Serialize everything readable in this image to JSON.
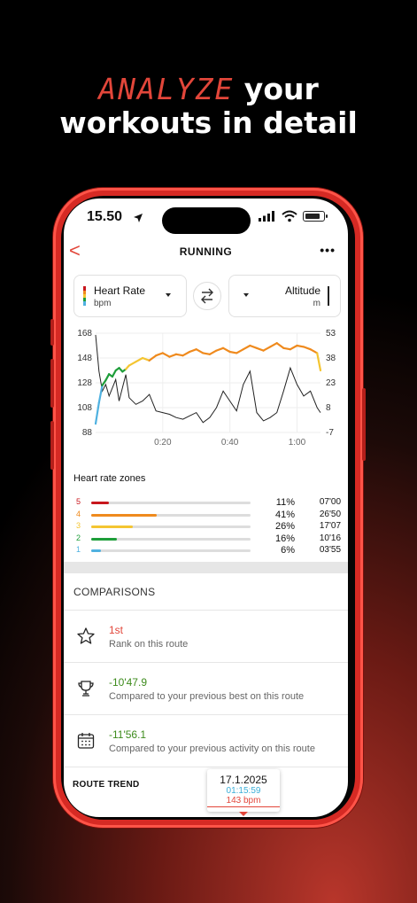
{
  "headline": {
    "accent": "ANALYZE",
    "rest1": " your",
    "line2": "workouts in detail"
  },
  "status_bar": {
    "time": "15.50"
  },
  "nav": {
    "back": "<",
    "title": "RUNNING",
    "more": "•••"
  },
  "selector_left": {
    "label": "Heart Rate",
    "unit": "bpm"
  },
  "selector_right": {
    "label": "Altitude",
    "unit": "m"
  },
  "chart_data": {
    "type": "line",
    "x_tick_labels": [
      "0:20",
      "0:40",
      "1:00"
    ],
    "y_left_ticks": [
      "168",
      "148",
      "128",
      "108",
      "88"
    ],
    "y_right_ticks": [
      "53",
      "38",
      "23",
      "8",
      "-7"
    ],
    "y_left_lim": [
      88,
      168
    ],
    "y_right_lim": [
      -7,
      53
    ],
    "x_minutes_lim": [
      0,
      67
    ],
    "series": [
      {
        "x": [
          0,
          1,
          2,
          3,
          4,
          5,
          6,
          7,
          8,
          9,
          10,
          12,
          14,
          16,
          18,
          20,
          22,
          24,
          26,
          28,
          30,
          32,
          34,
          36,
          38,
          40,
          42,
          44,
          46,
          48,
          50,
          52,
          54,
          56,
          58,
          60,
          62,
          64,
          66,
          67
        ],
        "values": [
          95,
          112,
          126,
          130,
          135,
          133,
          138,
          140,
          137,
          139,
          142,
          145,
          148,
          146,
          150,
          152,
          149,
          151,
          150,
          153,
          155,
          152,
          151,
          154,
          156,
          153,
          152,
          155,
          158,
          156,
          154,
          157,
          160,
          156,
          155,
          158,
          157,
          155,
          152,
          138
        ]
      },
      {
        "x": [
          0,
          1,
          2,
          3,
          4,
          5,
          6,
          7,
          8,
          9,
          10,
          12,
          14,
          16,
          18,
          20,
          22,
          24,
          26,
          28,
          30,
          32,
          34,
          36,
          38,
          40,
          42,
          44,
          46,
          48,
          50,
          52,
          54,
          56,
          58,
          60,
          62,
          64,
          66,
          67
        ],
        "values": [
          52,
          30,
          18,
          22,
          15,
          20,
          25,
          12,
          20,
          28,
          14,
          10,
          12,
          16,
          6,
          5,
          4,
          2,
          1,
          3,
          5,
          -1,
          2,
          8,
          18,
          12,
          6,
          22,
          30,
          5,
          0,
          2,
          5,
          18,
          32,
          22,
          15,
          18,
          8,
          5
        ]
      }
    ]
  },
  "zones": {
    "title": "Heart rate zones",
    "items": [
      {
        "num": "5",
        "color": "#c8171d",
        "fraction": 0.11,
        "pct": "11%",
        "time": "07'00"
      },
      {
        "num": "4",
        "color": "#ef8a1d",
        "fraction": 0.41,
        "pct": "41%",
        "time": "26'50"
      },
      {
        "num": "3",
        "color": "#f4c531",
        "fraction": 0.26,
        "pct": "26%",
        "time": "17'07"
      },
      {
        "num": "2",
        "color": "#1e9e3a",
        "fraction": 0.16,
        "pct": "16%",
        "time": "10'16"
      },
      {
        "num": "1",
        "color": "#4fb1e0",
        "fraction": 0.06,
        "pct": "6%",
        "time": "03'55"
      }
    ]
  },
  "comparisons": {
    "title": "COMPARISONS",
    "items": [
      {
        "icon": "star-icon",
        "value": "1st",
        "value_color": "#e2463a",
        "desc": "Rank on this route"
      },
      {
        "icon": "trophy-icon",
        "value": "-10'47.9",
        "value_color": "#3d8b1c",
        "desc": "Compared to your previous best on this route"
      },
      {
        "icon": "calendar-icon",
        "value": "-11'56.1",
        "value_color": "#3d8b1c",
        "desc": "Compared to your previous activity on this route"
      }
    ]
  },
  "route_trend": {
    "title": "ROUTE TREND"
  },
  "tooltip": {
    "date": "17.1.2025",
    "time": "01:15:59",
    "bpm": "143 bpm"
  }
}
